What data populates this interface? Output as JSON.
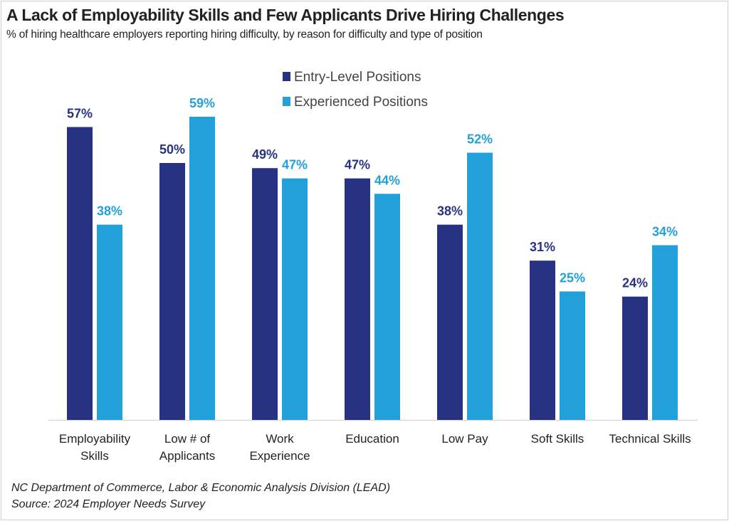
{
  "chart_data": {
    "type": "bar",
    "title": "A Lack of Employability Skills and Few Applicants Drive Hiring Challenges",
    "subtitle": "% of hiring healthcare employers reporting hiring difficulty, by reason for difficulty and type of position",
    "categories": [
      [
        "Employability",
        "Skills"
      ],
      [
        "Low # of",
        "Applicants"
      ],
      [
        "Work",
        "Experience"
      ],
      [
        "Education"
      ],
      [
        "Low Pay"
      ],
      [
        "Soft Skills"
      ],
      [
        "Technical Skills"
      ]
    ],
    "series": [
      {
        "name": "Entry-Level Positions",
        "color": "#283282",
        "values": [
          57,
          50,
          49,
          47,
          38,
          31,
          24
        ]
      },
      {
        "name": "Experienced Positions",
        "color": "#21A0DA",
        "values": [
          38,
          59,
          47,
          44,
          52,
          25,
          34
        ]
      }
    ],
    "value_suffix": "%",
    "xlabel": "",
    "ylabel": "",
    "ylim": [
      0,
      60
    ],
    "grid": false,
    "legend": "top-center"
  },
  "footer": {
    "line1": "NC Department of Commerce, Labor & Economic Analysis Division (LEAD)",
    "line2": "Source: 2024 Employer Needs Survey"
  }
}
